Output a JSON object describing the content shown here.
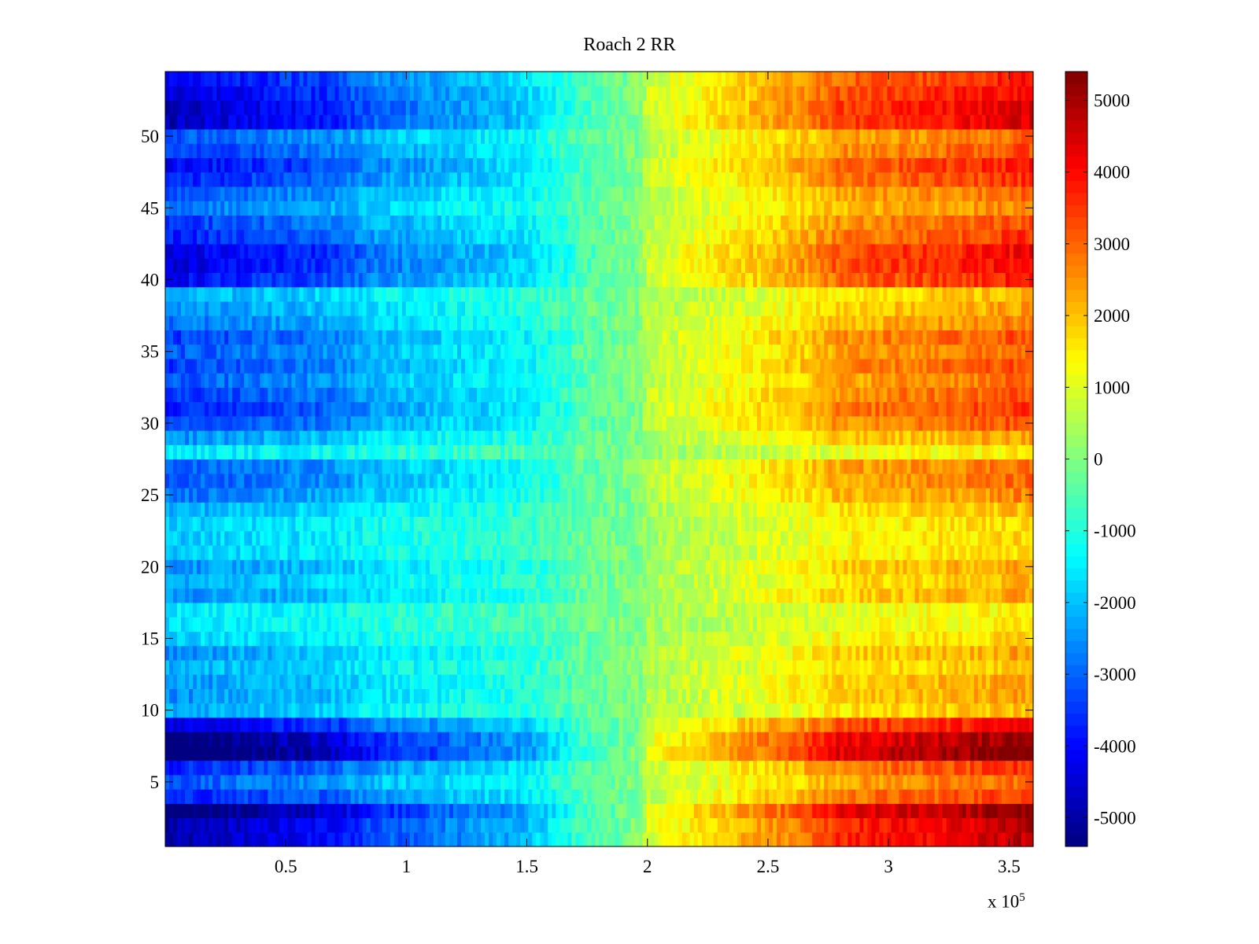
{
  "chart_data": {
    "type": "heatmap",
    "title": "Roach 2 RR",
    "xlabel": "",
    "ylabel": "",
    "x_multiplier": "x 10",
    "x_multiplier_exponent": "5",
    "xlim": [
      0,
      360000
    ],
    "ylim": [
      0.5,
      54.5
    ],
    "x_ticks": [
      0.5,
      1,
      1.5,
      2,
      2.5,
      3,
      3.5
    ],
    "x_tick_labels": [
      "0.5",
      "1",
      "1.5",
      "2",
      "2.5",
      "3",
      "3.5"
    ],
    "y_ticks": [
      5,
      10,
      15,
      20,
      25,
      30,
      35,
      40,
      45,
      50
    ],
    "y_tick_labels": [
      "5",
      "10",
      "15",
      "20",
      "25",
      "30",
      "35",
      "40",
      "45",
      "50"
    ],
    "colormap": "jet",
    "clim": [
      -5400,
      5400
    ],
    "colorbar_ticks": [
      5000,
      4000,
      3000,
      2000,
      1000,
      0,
      -1000,
      -2000,
      -3000,
      -4000,
      -5000
    ],
    "colorbar_tick_labels": [
      "5000",
      "4000",
      "3000",
      "2000",
      "1000",
      "0",
      "-1000",
      "-2000",
      "-3000",
      "-4000",
      "-5000"
    ],
    "rows": 54,
    "x_breakpoints": [
      0,
      17000,
      70000,
      87000,
      150000,
      168000,
      170000,
      197000,
      200000,
      265000,
      280000,
      335000,
      360000
    ],
    "baseline_profile": [
      -3200,
      -3000,
      -2500,
      -2000,
      -1300,
      -700,
      -500,
      0,
      600,
      1800,
      2300,
      2700,
      3000
    ],
    "row_gain": [
      1.6,
      1.6,
      1.8,
      1.2,
      1.0,
      1.2,
      1.9,
      1.8,
      1.4,
      0.7,
      0.8,
      0.8,
      0.7,
      0.8,
      0.6,
      0.5,
      0.5,
      0.8,
      0.7,
      0.8,
      0.6,
      0.6,
      0.6,
      0.7,
      0.9,
      1.0,
      1.0,
      0.5,
      0.8,
      1.1,
      1.2,
      1.1,
      1.0,
      1.1,
      1.0,
      1.1,
      0.9,
      0.8,
      0.7,
      1.3,
      1.4,
      1.4,
      1.2,
      1.1,
      0.9,
      1.0,
      1.2,
      1.3,
      1.1,
      1.0,
      1.5,
      1.5,
      1.4,
      1.3
    ],
    "series_note": ""
  }
}
